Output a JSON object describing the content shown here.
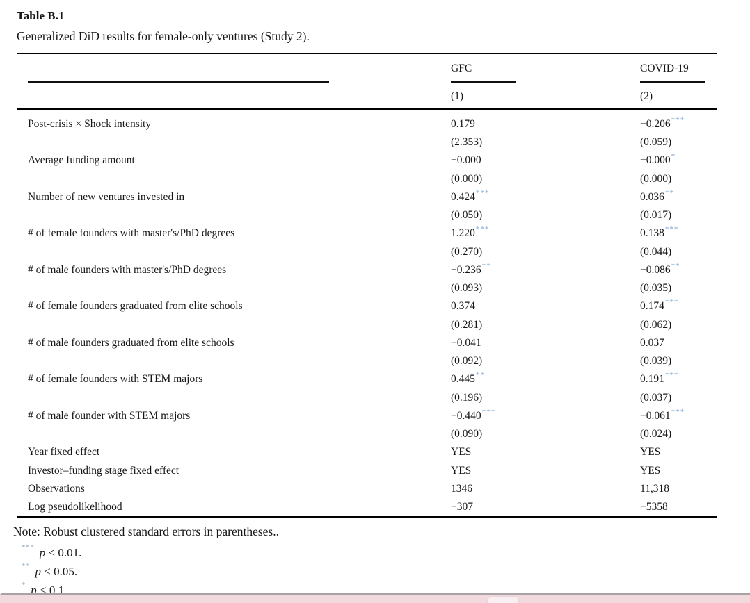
{
  "page": {
    "title": "Table B.1",
    "caption": "Generalized DiD results for female-only ventures (Study 2)."
  },
  "colors": {
    "significance_star_blue": "#7ca6d5",
    "footnote_star_gray_blue": "#93a6bf",
    "text": "#161616",
    "rule_black": "#000000",
    "overlay_pink": "#f1d9de",
    "overlay_border_gray": "#a8a1a5",
    "overlay_nub": "#f9eef1"
  },
  "table": {
    "column_groups": [
      {
        "label": "GFC",
        "number": "(1)"
      },
      {
        "label": "COVID-19",
        "number": "(2)"
      }
    ],
    "coef_rows": [
      {
        "label": "Post-crisis × Shock intensity",
        "c1": {
          "coef": "0.179",
          "stars": "",
          "se": "(2.353)"
        },
        "c2": {
          "coef": "−0.206",
          "stars": "***",
          "se": "(0.059)"
        }
      },
      {
        "label": "Average funding amount",
        "c1": {
          "coef": "−0.000",
          "stars": "",
          "se": "(0.000)"
        },
        "c2": {
          "coef": "−0.000",
          "stars": "*",
          "se": "(0.000)"
        }
      },
      {
        "label": "Number of new ventures invested in",
        "c1": {
          "coef": "0.424",
          "stars": "***",
          "se": "(0.050)"
        },
        "c2": {
          "coef": "0.036",
          "stars": "**",
          "se": "(0.017)"
        }
      },
      {
        "label": "# of female founders with master's/PhD degrees",
        "c1": {
          "coef": "1.220",
          "stars": "***",
          "se": "(0.270)"
        },
        "c2": {
          "coef": "0.138",
          "stars": "***",
          "se": "(0.044)"
        }
      },
      {
        "label": "# of male founders with master's/PhD degrees",
        "c1": {
          "coef": "−0.236",
          "stars": "**",
          "se": "(0.093)"
        },
        "c2": {
          "coef": "−0.086",
          "stars": "**",
          "se": "(0.035)"
        }
      },
      {
        "label": "# of female founders graduated from elite schools",
        "c1": {
          "coef": "0.374",
          "stars": "",
          "se": "(0.281)"
        },
        "c2": {
          "coef": "0.174",
          "stars": "***",
          "se": "(0.062)"
        }
      },
      {
        "label": "# of male founders graduated from elite schools",
        "c1": {
          "coef": "−0.041",
          "stars": "",
          "se": "(0.092)"
        },
        "c2": {
          "coef": "0.037",
          "stars": "",
          "se": "(0.039)"
        }
      },
      {
        "label": "# of female founders with STEM majors",
        "c1": {
          "coef": "0.445",
          "stars": "**",
          "se": "(0.196)"
        },
        "c2": {
          "coef": "0.191",
          "stars": "***",
          "se": "(0.037)"
        }
      },
      {
        "label": "# of male founder with STEM majors",
        "c1": {
          "coef": "−0.440",
          "stars": "***",
          "se": "(0.090)"
        },
        "c2": {
          "coef": "−0.061",
          "stars": "***",
          "se": "(0.024)"
        }
      }
    ],
    "info_rows": [
      {
        "label": "Year fixed effect",
        "c1": "YES",
        "c2": "YES"
      },
      {
        "label": "Investor–funding stage fixed effect",
        "c1": "YES",
        "c2": "YES"
      },
      {
        "label": "Observations",
        "c1": "1346",
        "c2": "11,318"
      },
      {
        "label": "Log pseudolikelihood",
        "c1": "−307",
        "c2": "−5358"
      }
    ]
  },
  "notes": {
    "main": "Note: Robust clustered standard errors in parentheses..",
    "items": [
      {
        "stars": "***",
        "p": "p",
        "rest": " < 0.01."
      },
      {
        "stars": "**",
        "p": "p",
        "rest": " < 0.05."
      },
      {
        "stars": "*",
        "p": "p",
        "rest": " < 0.1"
      }
    ]
  }
}
